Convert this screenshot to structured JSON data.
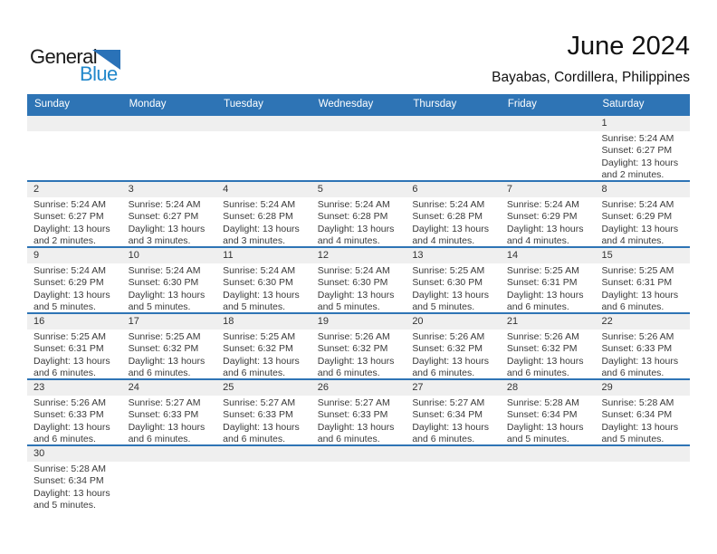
{
  "logo": {
    "part1": "General",
    "part2": "Blue"
  },
  "header": {
    "title": "June 2024",
    "subtitle": "Bayabas, Cordillera, Philippines"
  },
  "colors": {
    "header_bar_blue": "#2e74b5",
    "row_divider_blue": "#2e74b5",
    "date_band_gray": "#efefef",
    "logo_text_blue": "#2288cb",
    "logo_triangle_blue": "#2a72b8"
  },
  "weekdays": [
    "Sunday",
    "Monday",
    "Tuesday",
    "Wednesday",
    "Thursday",
    "Friday",
    "Saturday"
  ],
  "weeks": [
    {
      "cells": [
        null,
        null,
        null,
        null,
        null,
        null,
        {
          "day": "1",
          "sunrise": "Sunrise: 5:24 AM",
          "sunset": "Sunset: 6:27 PM",
          "daylight_line1": "Daylight: 13 hours",
          "daylight_line2": "and 2 minutes."
        }
      ]
    },
    {
      "cells": [
        {
          "day": "2",
          "sunrise": "Sunrise: 5:24 AM",
          "sunset": "Sunset: 6:27 PM",
          "daylight_line1": "Daylight: 13 hours",
          "daylight_line2": "and 2 minutes."
        },
        {
          "day": "3",
          "sunrise": "Sunrise: 5:24 AM",
          "sunset": "Sunset: 6:27 PM",
          "daylight_line1": "Daylight: 13 hours",
          "daylight_line2": "and 3 minutes."
        },
        {
          "day": "4",
          "sunrise": "Sunrise: 5:24 AM",
          "sunset": "Sunset: 6:28 PM",
          "daylight_line1": "Daylight: 13 hours",
          "daylight_line2": "and 3 minutes."
        },
        {
          "day": "5",
          "sunrise": "Sunrise: 5:24 AM",
          "sunset": "Sunset: 6:28 PM",
          "daylight_line1": "Daylight: 13 hours",
          "daylight_line2": "and 4 minutes."
        },
        {
          "day": "6",
          "sunrise": "Sunrise: 5:24 AM",
          "sunset": "Sunset: 6:28 PM",
          "daylight_line1": "Daylight: 13 hours",
          "daylight_line2": "and 4 minutes."
        },
        {
          "day": "7",
          "sunrise": "Sunrise: 5:24 AM",
          "sunset": "Sunset: 6:29 PM",
          "daylight_line1": "Daylight: 13 hours",
          "daylight_line2": "and 4 minutes."
        },
        {
          "day": "8",
          "sunrise": "Sunrise: 5:24 AM",
          "sunset": "Sunset: 6:29 PM",
          "daylight_line1": "Daylight: 13 hours",
          "daylight_line2": "and 4 minutes."
        }
      ]
    },
    {
      "cells": [
        {
          "day": "9",
          "sunrise": "Sunrise: 5:24 AM",
          "sunset": "Sunset: 6:29 PM",
          "daylight_line1": "Daylight: 13 hours",
          "daylight_line2": "and 5 minutes."
        },
        {
          "day": "10",
          "sunrise": "Sunrise: 5:24 AM",
          "sunset": "Sunset: 6:30 PM",
          "daylight_line1": "Daylight: 13 hours",
          "daylight_line2": "and 5 minutes."
        },
        {
          "day": "11",
          "sunrise": "Sunrise: 5:24 AM",
          "sunset": "Sunset: 6:30 PM",
          "daylight_line1": "Daylight: 13 hours",
          "daylight_line2": "and 5 minutes."
        },
        {
          "day": "12",
          "sunrise": "Sunrise: 5:24 AM",
          "sunset": "Sunset: 6:30 PM",
          "daylight_line1": "Daylight: 13 hours",
          "daylight_line2": "and 5 minutes."
        },
        {
          "day": "13",
          "sunrise": "Sunrise: 5:25 AM",
          "sunset": "Sunset: 6:30 PM",
          "daylight_line1": "Daylight: 13 hours",
          "daylight_line2": "and 5 minutes."
        },
        {
          "day": "14",
          "sunrise": "Sunrise: 5:25 AM",
          "sunset": "Sunset: 6:31 PM",
          "daylight_line1": "Daylight: 13 hours",
          "daylight_line2": "and 6 minutes."
        },
        {
          "day": "15",
          "sunrise": "Sunrise: 5:25 AM",
          "sunset": "Sunset: 6:31 PM",
          "daylight_line1": "Daylight: 13 hours",
          "daylight_line2": "and 6 minutes."
        }
      ]
    },
    {
      "cells": [
        {
          "day": "16",
          "sunrise": "Sunrise: 5:25 AM",
          "sunset": "Sunset: 6:31 PM",
          "daylight_line1": "Daylight: 13 hours",
          "daylight_line2": "and 6 minutes."
        },
        {
          "day": "17",
          "sunrise": "Sunrise: 5:25 AM",
          "sunset": "Sunset: 6:32 PM",
          "daylight_line1": "Daylight: 13 hours",
          "daylight_line2": "and 6 minutes."
        },
        {
          "day": "18",
          "sunrise": "Sunrise: 5:25 AM",
          "sunset": "Sunset: 6:32 PM",
          "daylight_line1": "Daylight: 13 hours",
          "daylight_line2": "and 6 minutes."
        },
        {
          "day": "19",
          "sunrise": "Sunrise: 5:26 AM",
          "sunset": "Sunset: 6:32 PM",
          "daylight_line1": "Daylight: 13 hours",
          "daylight_line2": "and 6 minutes."
        },
        {
          "day": "20",
          "sunrise": "Sunrise: 5:26 AM",
          "sunset": "Sunset: 6:32 PM",
          "daylight_line1": "Daylight: 13 hours",
          "daylight_line2": "and 6 minutes."
        },
        {
          "day": "21",
          "sunrise": "Sunrise: 5:26 AM",
          "sunset": "Sunset: 6:32 PM",
          "daylight_line1": "Daylight: 13 hours",
          "daylight_line2": "and 6 minutes."
        },
        {
          "day": "22",
          "sunrise": "Sunrise: 5:26 AM",
          "sunset": "Sunset: 6:33 PM",
          "daylight_line1": "Daylight: 13 hours",
          "daylight_line2": "and 6 minutes."
        }
      ]
    },
    {
      "cells": [
        {
          "day": "23",
          "sunrise": "Sunrise: 5:26 AM",
          "sunset": "Sunset: 6:33 PM",
          "daylight_line1": "Daylight: 13 hours",
          "daylight_line2": "and 6 minutes."
        },
        {
          "day": "24",
          "sunrise": "Sunrise: 5:27 AM",
          "sunset": "Sunset: 6:33 PM",
          "daylight_line1": "Daylight: 13 hours",
          "daylight_line2": "and 6 minutes."
        },
        {
          "day": "25",
          "sunrise": "Sunrise: 5:27 AM",
          "sunset": "Sunset: 6:33 PM",
          "daylight_line1": "Daylight: 13 hours",
          "daylight_line2": "and 6 minutes."
        },
        {
          "day": "26",
          "sunrise": "Sunrise: 5:27 AM",
          "sunset": "Sunset: 6:33 PM",
          "daylight_line1": "Daylight: 13 hours",
          "daylight_line2": "and 6 minutes."
        },
        {
          "day": "27",
          "sunrise": "Sunrise: 5:27 AM",
          "sunset": "Sunset: 6:34 PM",
          "daylight_line1": "Daylight: 13 hours",
          "daylight_line2": "and 6 minutes."
        },
        {
          "day": "28",
          "sunrise": "Sunrise: 5:28 AM",
          "sunset": "Sunset: 6:34 PM",
          "daylight_line1": "Daylight: 13 hours",
          "daylight_line2": "and 5 minutes."
        },
        {
          "day": "29",
          "sunrise": "Sunrise: 5:28 AM",
          "sunset": "Sunset: 6:34 PM",
          "daylight_line1": "Daylight: 13 hours",
          "daylight_line2": "and 5 minutes."
        }
      ]
    },
    {
      "cells": [
        {
          "day": "30",
          "sunrise": "Sunrise: 5:28 AM",
          "sunset": "Sunset: 6:34 PM",
          "daylight_line1": "Daylight: 13 hours",
          "daylight_line2": "and 5 minutes."
        },
        null,
        null,
        null,
        null,
        null,
        null
      ]
    }
  ]
}
